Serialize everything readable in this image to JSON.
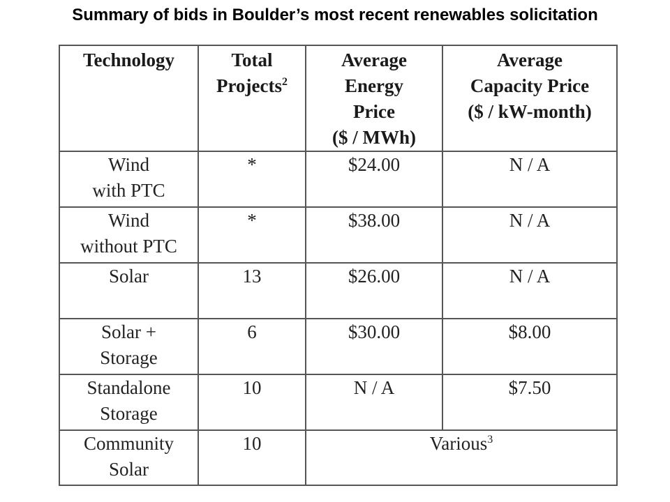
{
  "title": "Summary of bids in Boulder’s most recent renewables solicitation",
  "table": {
    "headers": {
      "technology": [
        "Technology"
      ],
      "total_projects": [
        "Total",
        "Projects"
      ],
      "total_projects_sup": "2",
      "energy_price": [
        "Average",
        "Energy",
        "Price",
        "($ / MWh)"
      ],
      "capacity_price": [
        "Average",
        "Capacity Price",
        "($ / kW-month)"
      ]
    },
    "rows": [
      {
        "technology": [
          "Wind",
          "with PTC"
        ],
        "projects": "*",
        "energy": "$24.00",
        "capacity": "N / A"
      },
      {
        "technology": [
          "Wind",
          "without PTC"
        ],
        "projects": "*",
        "energy": "$38.00",
        "capacity": "N / A"
      },
      {
        "technology": [
          "Solar"
        ],
        "projects": "13",
        "energy": "$26.00",
        "capacity": "N / A"
      },
      {
        "technology": [
          "Solar +",
          "Storage"
        ],
        "projects": "6",
        "energy": "$30.00",
        "capacity": "$8.00"
      },
      {
        "technology": [
          "Standalone",
          "Storage"
        ],
        "projects": "10",
        "energy": "N / A",
        "capacity": "$7.50"
      }
    ],
    "community": {
      "technology": [
        "Community",
        "Solar"
      ],
      "projects": "10",
      "price": "Various",
      "price_sup": "3"
    }
  }
}
